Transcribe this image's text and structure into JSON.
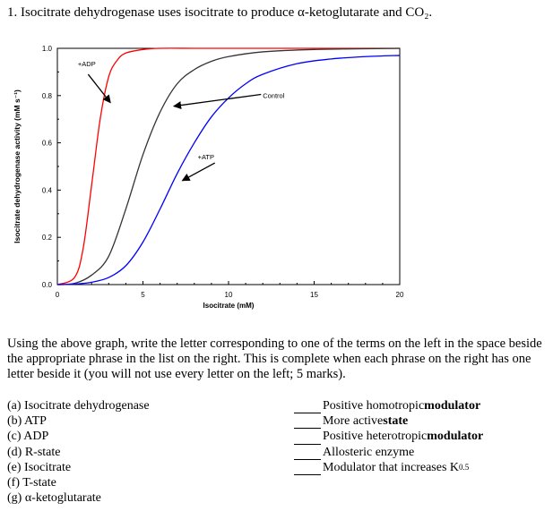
{
  "question": {
    "title": "1. Isocitrate dehydrogenase uses isocitrate to produce α-ketoglutarate and CO₂."
  },
  "chart_data": {
    "type": "line",
    "title": "",
    "xlabel": "Isocitrate (mM)",
    "ylabel": "Isocitrate dehydrogenase activity (mM s⁻¹)",
    "xlim": [
      0,
      20
    ],
    "ylim": [
      0,
      1.0
    ],
    "x_ticks": [
      "0",
      "5",
      "10",
      "15",
      "20"
    ],
    "y_ticks": [
      "0.0",
      "0.2",
      "0.4",
      "0.6",
      "0.8",
      "1.0"
    ],
    "grid": false,
    "series": [
      {
        "name": "+ADP",
        "color": "#ff0000",
        "x": [
          0,
          1,
          1.5,
          2,
          2.5,
          3,
          3.5,
          4,
          5,
          6,
          8,
          10,
          15,
          20
        ],
        "y": [
          0.0,
          0.03,
          0.15,
          0.42,
          0.7,
          0.88,
          0.95,
          0.98,
          0.995,
          1.0,
          1.0,
          1.0,
          1.0,
          1.0
        ]
      },
      {
        "name": "Control",
        "color": "#333333",
        "x": [
          0,
          1,
          2,
          3,
          4,
          5,
          6,
          7,
          8,
          9,
          10,
          12,
          15,
          20
        ],
        "y": [
          0.0,
          0.005,
          0.04,
          0.12,
          0.32,
          0.55,
          0.73,
          0.85,
          0.91,
          0.945,
          0.965,
          0.985,
          0.995,
          1.0
        ]
      },
      {
        "name": "+ATP",
        "color": "#0000ff",
        "x": [
          0,
          1,
          2,
          3,
          4,
          5,
          6,
          7,
          8,
          9,
          10,
          11,
          12,
          14,
          16,
          18,
          20
        ],
        "y": [
          0.0,
          0.002,
          0.01,
          0.03,
          0.08,
          0.18,
          0.32,
          0.47,
          0.6,
          0.71,
          0.79,
          0.85,
          0.89,
          0.935,
          0.955,
          0.965,
          0.97
        ]
      }
    ],
    "annotations": [
      "+ADP",
      "Control",
      "+ATP"
    ]
  },
  "instructions": "Using the above graph, write the letter corresponding to one of the terms on the left in the space beside the appropriate phrase in the list on the right. This is complete when each phrase on the right has one letter beside it (you will not use every letter on the left; 5 marks).",
  "terms": [
    "(a) Isocitrate dehydrogenase",
    "(b) ATP",
    "(c) ADP",
    "(d) R-state",
    "(e) Isocitrate",
    "(f) T-state",
    "(g) α-ketoglutarate"
  ],
  "phrases": [
    {
      "text": "Positive homotropic ",
      "bold": "modulator",
      "sub": ""
    },
    {
      "text": "More active ",
      "bold": "state",
      "sub": ""
    },
    {
      "text": "Positive heterotropic ",
      "bold": "modulator",
      "sub": ""
    },
    {
      "text": "Allosteric enzyme",
      "bold": "",
      "sub": ""
    },
    {
      "text": "Modulator that increases K",
      "bold": "",
      "sub": "0.5"
    }
  ]
}
